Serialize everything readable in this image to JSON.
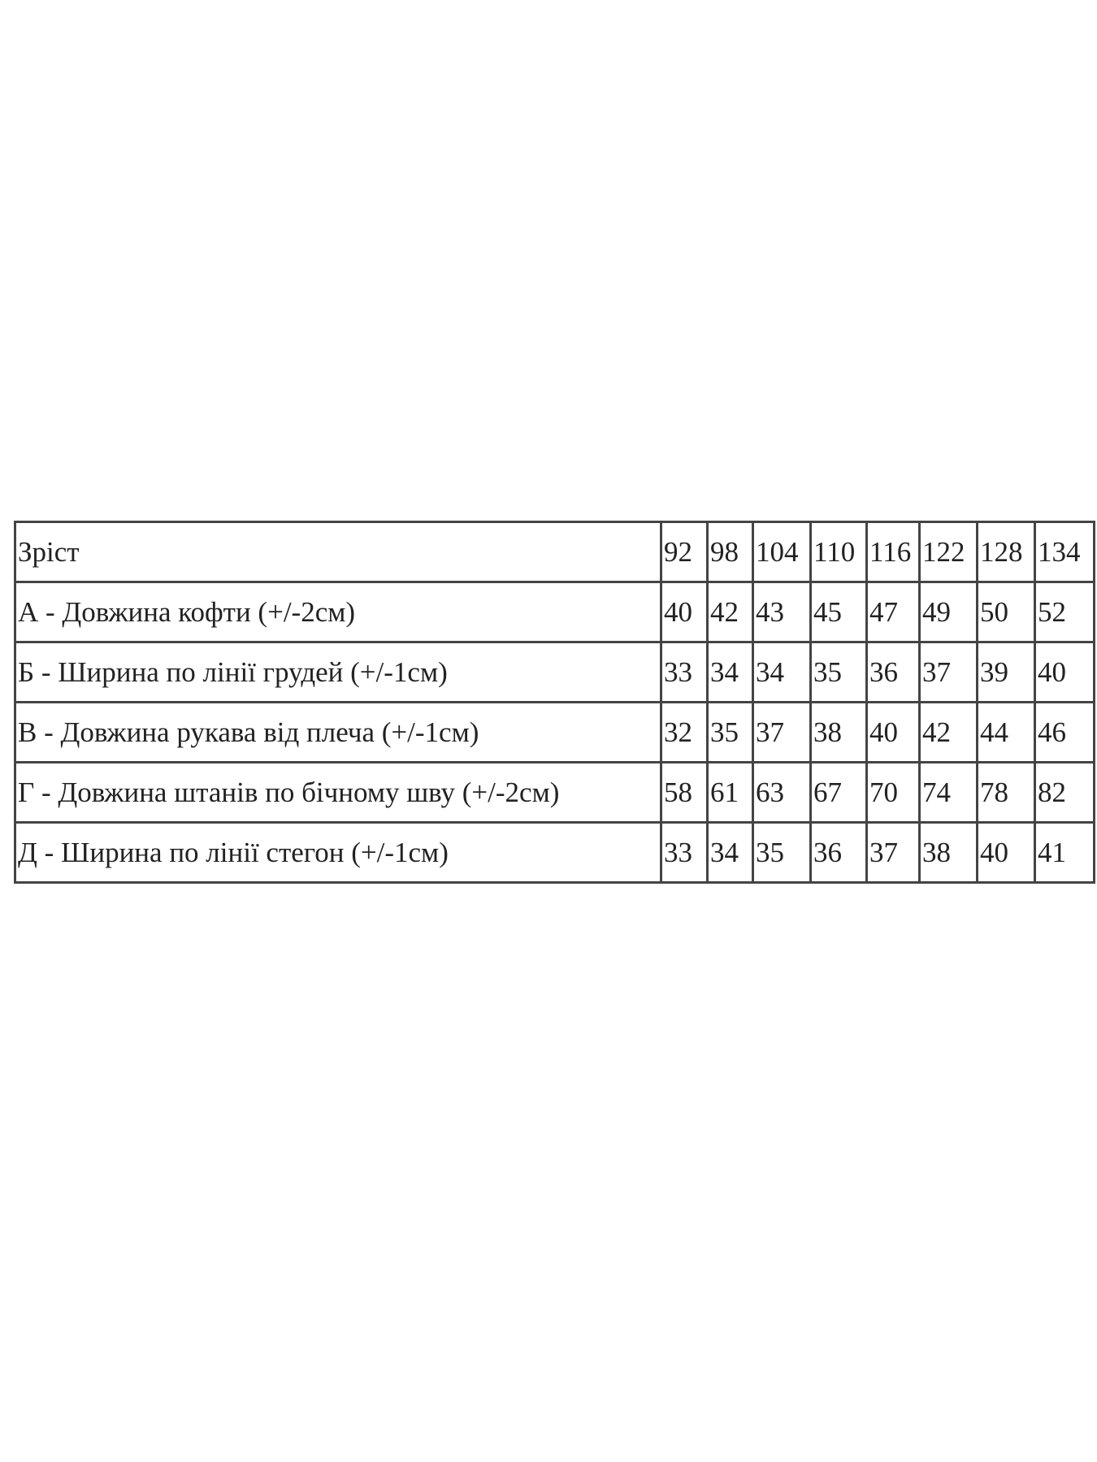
{
  "table": {
    "header": [
      "Зріст",
      92,
      98,
      104,
      110,
      116,
      122,
      128,
      134
    ],
    "rows": [
      [
        "А - Довжина кофти (+/-2см)",
        40,
        42,
        43,
        45,
        47,
        49,
        50,
        52
      ],
      [
        "Б - Ширина по лінії грудей (+/-1см)",
        33,
        34,
        34,
        35,
        36,
        37,
        39,
        40
      ],
      [
        "В - Довжина рукава від плеча (+/-1см)",
        32,
        35,
        37,
        38,
        40,
        42,
        44,
        46
      ],
      [
        "Г - Довжина штанів по бічному шву (+/-2см)",
        58,
        61,
        63,
        67,
        70,
        74,
        78,
        82
      ],
      [
        "Д - Ширина по лінії стегон (+/-1см)",
        33,
        34,
        35,
        36,
        37,
        38,
        40,
        41
      ]
    ]
  }
}
